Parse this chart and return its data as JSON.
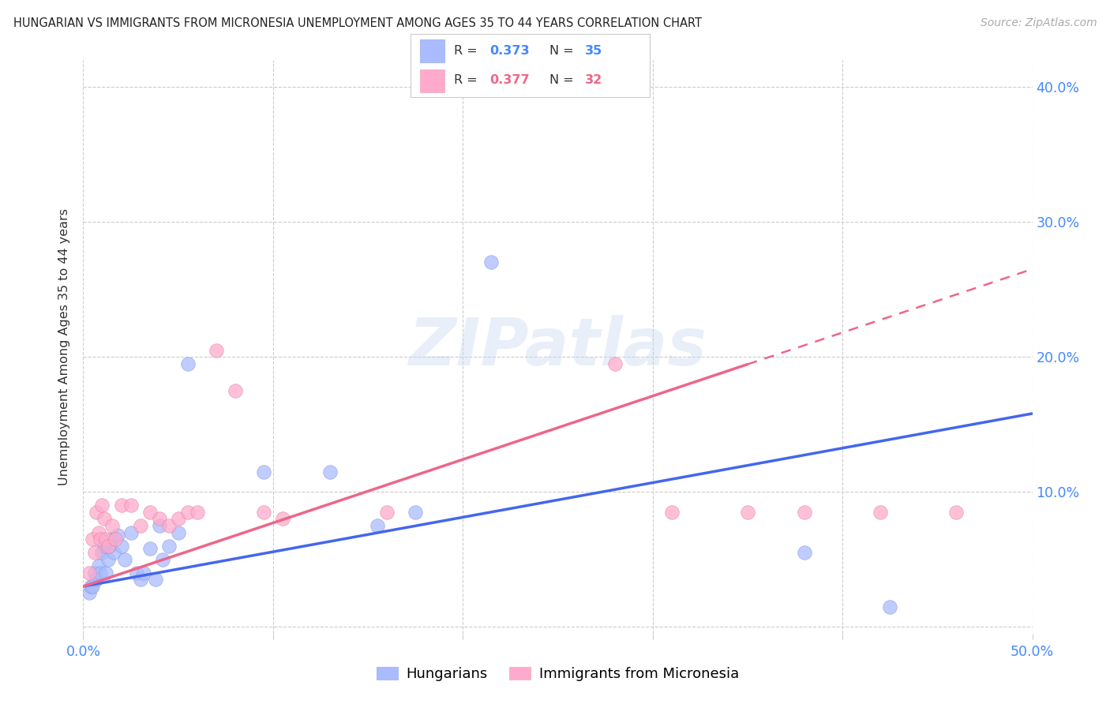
{
  "title": "HUNGARIAN VS IMMIGRANTS FROM MICRONESIA UNEMPLOYMENT AMONG AGES 35 TO 44 YEARS CORRELATION CHART",
  "source": "Source: ZipAtlas.com",
  "ylabel": "Unemployment Among Ages 35 to 44 years",
  "xlim": [
    0.0,
    0.5
  ],
  "ylim": [
    -0.005,
    0.42
  ],
  "yticks": [
    0.0,
    0.1,
    0.2,
    0.3,
    0.4
  ],
  "ytick_labels": [
    "",
    "10.0%",
    "20.0%",
    "30.0%",
    "40.0%"
  ],
  "xticks": [
    0.0,
    0.1,
    0.2,
    0.3,
    0.4,
    0.5
  ],
  "xtick_labels": [
    "0.0%",
    "",
    "",
    "",
    "",
    "50.0%"
  ],
  "r1": 0.373,
  "n1": 35,
  "r2": 0.377,
  "n2": 32,
  "blue_color": "#aabbff",
  "pink_color": "#ffaacc",
  "blue_line_color": "#4466ee",
  "pink_line_color": "#ee6688",
  "watermark": "ZIPatlas",
  "blue_line_x0": 0.0,
  "blue_line_y0": 0.03,
  "blue_line_x1": 0.5,
  "blue_line_y1": 0.158,
  "pink_line_x0": 0.0,
  "pink_line_y0": 0.03,
  "pink_line_x1": 0.5,
  "pink_line_y1": 0.265,
  "hungarian_x": [
    0.003,
    0.004,
    0.005,
    0.006,
    0.007,
    0.008,
    0.009,
    0.01,
    0.011,
    0.012,
    0.013,
    0.014,
    0.015,
    0.016,
    0.018,
    0.02,
    0.022,
    0.025,
    0.028,
    0.03,
    0.032,
    0.035,
    0.038,
    0.04,
    0.042,
    0.045,
    0.05,
    0.055,
    0.095,
    0.13,
    0.155,
    0.175,
    0.215,
    0.38,
    0.425
  ],
  "hungarian_y": [
    0.025,
    0.03,
    0.03,
    0.04,
    0.035,
    0.045,
    0.04,
    0.055,
    0.06,
    0.04,
    0.05,
    0.06,
    0.065,
    0.055,
    0.068,
    0.06,
    0.05,
    0.07,
    0.04,
    0.035,
    0.04,
    0.058,
    0.035,
    0.075,
    0.05,
    0.06,
    0.07,
    0.195,
    0.115,
    0.115,
    0.075,
    0.085,
    0.27,
    0.055,
    0.015
  ],
  "micronesia_x": [
    0.003,
    0.005,
    0.006,
    0.007,
    0.008,
    0.009,
    0.01,
    0.011,
    0.012,
    0.013,
    0.015,
    0.017,
    0.02,
    0.025,
    0.03,
    0.035,
    0.04,
    0.045,
    0.05,
    0.055,
    0.06,
    0.07,
    0.08,
    0.095,
    0.105,
    0.16,
    0.28,
    0.31,
    0.35,
    0.38,
    0.42,
    0.46
  ],
  "micronesia_y": [
    0.04,
    0.065,
    0.055,
    0.085,
    0.07,
    0.065,
    0.09,
    0.08,
    0.065,
    0.06,
    0.075,
    0.065,
    0.09,
    0.09,
    0.075,
    0.085,
    0.08,
    0.075,
    0.08,
    0.085,
    0.085,
    0.205,
    0.175,
    0.085,
    0.08,
    0.085,
    0.195,
    0.085,
    0.085,
    0.085,
    0.085,
    0.085
  ]
}
